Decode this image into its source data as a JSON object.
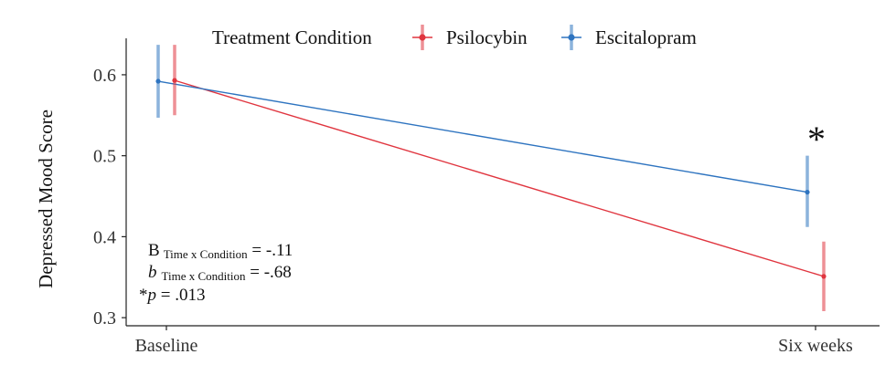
{
  "chart_data": {
    "type": "line",
    "legend": {
      "title": "Treatment Condition",
      "position": "top"
    },
    "xlabel": "",
    "ylabel": "Depressed Mood Score",
    "categories": [
      "Baseline",
      "Six weeks"
    ],
    "ylim": [
      0.29,
      0.645
    ],
    "yticks": [
      "0.3",
      "0.4",
      "0.5",
      "0.6"
    ],
    "grid": false,
    "series": [
      {
        "name": "Psilocybin",
        "color": "#E0353F",
        "values": [
          0.593,
          0.351
        ],
        "error_low": [
          0.55,
          0.308
        ],
        "error_high": [
          0.637,
          0.394
        ]
      },
      {
        "name": "Escitalopram",
        "color": "#2E74C0",
        "values": [
          0.592,
          0.455
        ],
        "error_low": [
          0.547,
          0.412
        ],
        "error_high": [
          0.637,
          0.5
        ]
      }
    ],
    "significance_marker": "*",
    "annotations": {
      "line1": {
        "prefix": "B",
        "subscript": "Time x Condition",
        "suffix": " = -.11"
      },
      "line2": {
        "prefix": "b",
        "subscript": "Time x Condition",
        "suffix": " = -.68"
      },
      "line3": {
        "prefix": "*",
        "italic": "p",
        "suffix": " = .013"
      }
    }
  }
}
